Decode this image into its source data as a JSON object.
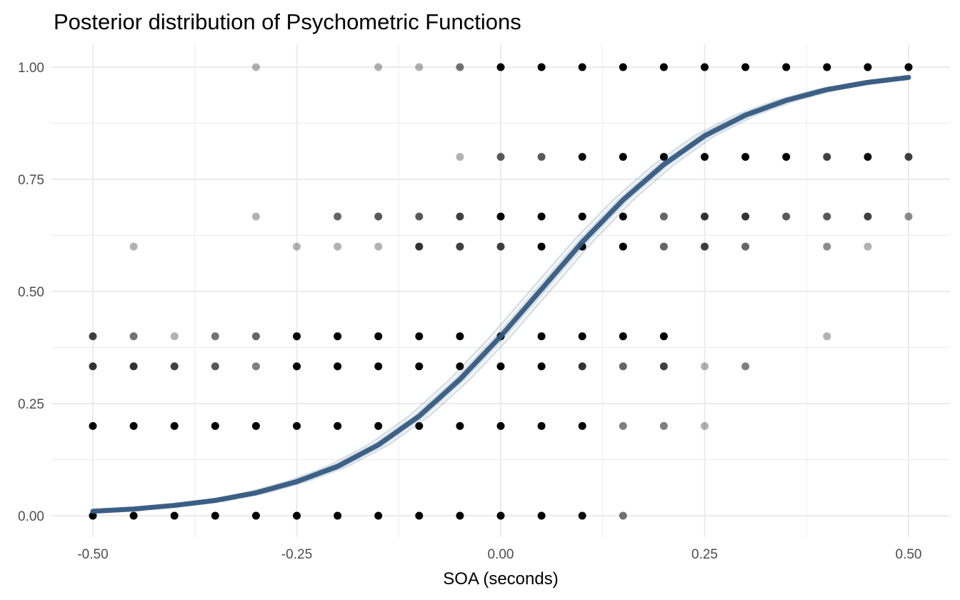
{
  "chart_data": {
    "type": "scatter",
    "title": "Posterior distribution of Psychometric Functions",
    "xlabel": "SOA (seconds)",
    "ylabel": "",
    "xlim": [
      -0.5,
      0.5
    ],
    "ylim": [
      0,
      1
    ],
    "x_ticks": [
      -0.5,
      -0.25,
      0,
      0.25,
      0.5
    ],
    "y_ticks": [
      0,
      0.25,
      0.5,
      0.75,
      1
    ],
    "x_tick_labels": [
      "-0.50",
      "-0.25",
      "0.00",
      "0.25",
      "0.50"
    ],
    "y_tick_labels": [
      "0.00",
      "0.25",
      "0.50",
      "0.75",
      "1.00"
    ],
    "grid": true,
    "legend": "none",
    "colors": {
      "curve": "#34597f",
      "point": "#000000",
      "grid": "#ebebeb"
    },
    "points": [
      {
        "x": -0.3,
        "y": 1.0,
        "opacity": 0.3
      },
      {
        "x": -0.15,
        "y": 1.0,
        "opacity": 0.3
      },
      {
        "x": -0.1,
        "y": 1.0,
        "opacity": 0.3
      },
      {
        "x": -0.05,
        "y": 1.0,
        "opacity": 0.55
      },
      {
        "x": 0.0,
        "y": 1.0,
        "opacity": 1
      },
      {
        "x": 0.05,
        "y": 1.0,
        "opacity": 1
      },
      {
        "x": 0.1,
        "y": 1.0,
        "opacity": 1
      },
      {
        "x": 0.15,
        "y": 1.0,
        "opacity": 1
      },
      {
        "x": 0.2,
        "y": 1.0,
        "opacity": 1
      },
      {
        "x": 0.25,
        "y": 1.0,
        "opacity": 1
      },
      {
        "x": 0.3,
        "y": 1.0,
        "opacity": 1
      },
      {
        "x": 0.35,
        "y": 1.0,
        "opacity": 1
      },
      {
        "x": 0.4,
        "y": 1.0,
        "opacity": 1
      },
      {
        "x": 0.45,
        "y": 1.0,
        "opacity": 1
      },
      {
        "x": 0.5,
        "y": 1.0,
        "opacity": 1
      },
      {
        "x": -0.05,
        "y": 0.8,
        "opacity": 0.3
      },
      {
        "x": 0.0,
        "y": 0.8,
        "opacity": 0.65
      },
      {
        "x": 0.05,
        "y": 0.8,
        "opacity": 0.65
      },
      {
        "x": 0.1,
        "y": 0.8,
        "opacity": 0.95
      },
      {
        "x": 0.15,
        "y": 0.8,
        "opacity": 1
      },
      {
        "x": 0.2,
        "y": 0.8,
        "opacity": 1
      },
      {
        "x": 0.25,
        "y": 0.8,
        "opacity": 1
      },
      {
        "x": 0.3,
        "y": 0.8,
        "opacity": 1
      },
      {
        "x": 0.35,
        "y": 0.8,
        "opacity": 1
      },
      {
        "x": 0.4,
        "y": 0.8,
        "opacity": 0.75
      },
      {
        "x": 0.45,
        "y": 0.8,
        "opacity": 0.95
      },
      {
        "x": 0.5,
        "y": 0.8,
        "opacity": 0.75
      },
      {
        "x": -0.3,
        "y": 0.667,
        "opacity": 0.3
      },
      {
        "x": -0.2,
        "y": 0.667,
        "opacity": 0.6
      },
      {
        "x": -0.15,
        "y": 0.667,
        "opacity": 0.65
      },
      {
        "x": -0.1,
        "y": 0.667,
        "opacity": 0.65
      },
      {
        "x": -0.05,
        "y": 0.667,
        "opacity": 0.75
      },
      {
        "x": 0.0,
        "y": 0.667,
        "opacity": 1
      },
      {
        "x": 0.05,
        "y": 0.667,
        "opacity": 1
      },
      {
        "x": 0.1,
        "y": 0.667,
        "opacity": 1
      },
      {
        "x": 0.15,
        "y": 0.667,
        "opacity": 1
      },
      {
        "x": 0.2,
        "y": 0.667,
        "opacity": 0.6
      },
      {
        "x": 0.25,
        "y": 0.667,
        "opacity": 0.8
      },
      {
        "x": 0.3,
        "y": 0.667,
        "opacity": 0.8
      },
      {
        "x": 0.35,
        "y": 0.667,
        "opacity": 0.65
      },
      {
        "x": 0.4,
        "y": 0.667,
        "opacity": 0.65
      },
      {
        "x": 0.45,
        "y": 0.667,
        "opacity": 0.75
      },
      {
        "x": 0.5,
        "y": 0.667,
        "opacity": 0.45
      },
      {
        "x": -0.45,
        "y": 0.6,
        "opacity": 0.3
      },
      {
        "x": -0.25,
        "y": 0.6,
        "opacity": 0.3
      },
      {
        "x": -0.2,
        "y": 0.6,
        "opacity": 0.3
      },
      {
        "x": -0.15,
        "y": 0.6,
        "opacity": 0.3
      },
      {
        "x": -0.1,
        "y": 0.6,
        "opacity": 0.8
      },
      {
        "x": -0.05,
        "y": 0.6,
        "opacity": 0.75
      },
      {
        "x": 0.0,
        "y": 0.6,
        "opacity": 0.75
      },
      {
        "x": 0.05,
        "y": 0.6,
        "opacity": 1
      },
      {
        "x": 0.1,
        "y": 0.6,
        "opacity": 1
      },
      {
        "x": 0.15,
        "y": 0.6,
        "opacity": 1
      },
      {
        "x": 0.2,
        "y": 0.6,
        "opacity": 0.6
      },
      {
        "x": 0.25,
        "y": 0.6,
        "opacity": 0.75
      },
      {
        "x": 0.3,
        "y": 0.6,
        "opacity": 0.6
      },
      {
        "x": 0.4,
        "y": 0.6,
        "opacity": 0.45
      },
      {
        "x": 0.45,
        "y": 0.6,
        "opacity": 0.3
      },
      {
        "x": -0.5,
        "y": 0.4,
        "opacity": 0.75
      },
      {
        "x": -0.45,
        "y": 0.4,
        "opacity": 0.55
      },
      {
        "x": -0.4,
        "y": 0.4,
        "opacity": 0.3
      },
      {
        "x": -0.35,
        "y": 0.4,
        "opacity": 0.55
      },
      {
        "x": -0.3,
        "y": 0.4,
        "opacity": 0.6
      },
      {
        "x": -0.25,
        "y": 0.4,
        "opacity": 1
      },
      {
        "x": -0.2,
        "y": 0.4,
        "opacity": 1
      },
      {
        "x": -0.15,
        "y": 0.4,
        "opacity": 1
      },
      {
        "x": -0.1,
        "y": 0.4,
        "opacity": 1
      },
      {
        "x": -0.05,
        "y": 0.4,
        "opacity": 1
      },
      {
        "x": 0.0,
        "y": 0.4,
        "opacity": 1
      },
      {
        "x": 0.05,
        "y": 0.4,
        "opacity": 1
      },
      {
        "x": 0.1,
        "y": 0.4,
        "opacity": 1
      },
      {
        "x": 0.15,
        "y": 0.4,
        "opacity": 1
      },
      {
        "x": 0.2,
        "y": 0.4,
        "opacity": 1
      },
      {
        "x": 0.4,
        "y": 0.4,
        "opacity": 0.3
      },
      {
        "x": -0.5,
        "y": 0.333,
        "opacity": 0.8
      },
      {
        "x": -0.45,
        "y": 0.333,
        "opacity": 0.8
      },
      {
        "x": -0.4,
        "y": 0.333,
        "opacity": 0.75
      },
      {
        "x": -0.35,
        "y": 0.333,
        "opacity": 0.65
      },
      {
        "x": -0.3,
        "y": 0.333,
        "opacity": 0.5
      },
      {
        "x": -0.25,
        "y": 0.333,
        "opacity": 1
      },
      {
        "x": -0.2,
        "y": 0.333,
        "opacity": 1
      },
      {
        "x": -0.15,
        "y": 0.333,
        "opacity": 1
      },
      {
        "x": -0.1,
        "y": 0.333,
        "opacity": 1
      },
      {
        "x": -0.05,
        "y": 0.333,
        "opacity": 1
      },
      {
        "x": 0.0,
        "y": 0.333,
        "opacity": 1
      },
      {
        "x": 0.05,
        "y": 0.333,
        "opacity": 1
      },
      {
        "x": 0.1,
        "y": 0.333,
        "opacity": 0.8
      },
      {
        "x": 0.15,
        "y": 0.333,
        "opacity": 0.6
      },
      {
        "x": 0.2,
        "y": 0.333,
        "opacity": 0.75
      },
      {
        "x": 0.25,
        "y": 0.333,
        "opacity": 0.3
      },
      {
        "x": 0.3,
        "y": 0.333,
        "opacity": 0.5
      },
      {
        "x": -0.5,
        "y": 0.2,
        "opacity": 1
      },
      {
        "x": -0.45,
        "y": 0.2,
        "opacity": 1
      },
      {
        "x": -0.4,
        "y": 0.2,
        "opacity": 1
      },
      {
        "x": -0.35,
        "y": 0.2,
        "opacity": 1
      },
      {
        "x": -0.3,
        "y": 0.2,
        "opacity": 1
      },
      {
        "x": -0.25,
        "y": 0.2,
        "opacity": 1
      },
      {
        "x": -0.2,
        "y": 0.2,
        "opacity": 1
      },
      {
        "x": -0.15,
        "y": 0.2,
        "opacity": 1
      },
      {
        "x": -0.1,
        "y": 0.2,
        "opacity": 1
      },
      {
        "x": -0.05,
        "y": 0.2,
        "opacity": 1
      },
      {
        "x": 0.0,
        "y": 0.2,
        "opacity": 1
      },
      {
        "x": 0.05,
        "y": 0.2,
        "opacity": 1
      },
      {
        "x": 0.1,
        "y": 0.2,
        "opacity": 1
      },
      {
        "x": 0.15,
        "y": 0.2,
        "opacity": 0.5
      },
      {
        "x": 0.2,
        "y": 0.2,
        "opacity": 0.5
      },
      {
        "x": 0.25,
        "y": 0.2,
        "opacity": 0.3
      },
      {
        "x": -0.5,
        "y": 0.0,
        "opacity": 1
      },
      {
        "x": -0.45,
        "y": 0.0,
        "opacity": 1
      },
      {
        "x": -0.4,
        "y": 0.0,
        "opacity": 1
      },
      {
        "x": -0.35,
        "y": 0.0,
        "opacity": 1
      },
      {
        "x": -0.3,
        "y": 0.0,
        "opacity": 1
      },
      {
        "x": -0.25,
        "y": 0.0,
        "opacity": 1
      },
      {
        "x": -0.2,
        "y": 0.0,
        "opacity": 1
      },
      {
        "x": -0.15,
        "y": 0.0,
        "opacity": 1
      },
      {
        "x": -0.1,
        "y": 0.0,
        "opacity": 1
      },
      {
        "x": -0.05,
        "y": 0.0,
        "opacity": 1
      },
      {
        "x": 0.0,
        "y": 0.0,
        "opacity": 1
      },
      {
        "x": 0.05,
        "y": 0.0,
        "opacity": 1
      },
      {
        "x": 0.1,
        "y": 0.0,
        "opacity": 0.95
      },
      {
        "x": 0.15,
        "y": 0.0,
        "opacity": 0.55
      }
    ],
    "curve": {
      "type": "logistic",
      "x": [
        -0.5,
        -0.45,
        -0.4,
        -0.35,
        -0.3,
        -0.25,
        -0.2,
        -0.15,
        -0.1,
        -0.05,
        0.0,
        0.05,
        0.1,
        0.15,
        0.2,
        0.25,
        0.3,
        0.35,
        0.4,
        0.45,
        0.5
      ],
      "y": [
        0.01,
        0.015,
        0.023,
        0.034,
        0.051,
        0.076,
        0.11,
        0.158,
        0.222,
        0.304,
        0.4,
        0.505,
        0.61,
        0.704,
        0.783,
        0.847,
        0.893,
        0.926,
        0.95,
        0.966,
        0.977
      ]
    }
  }
}
